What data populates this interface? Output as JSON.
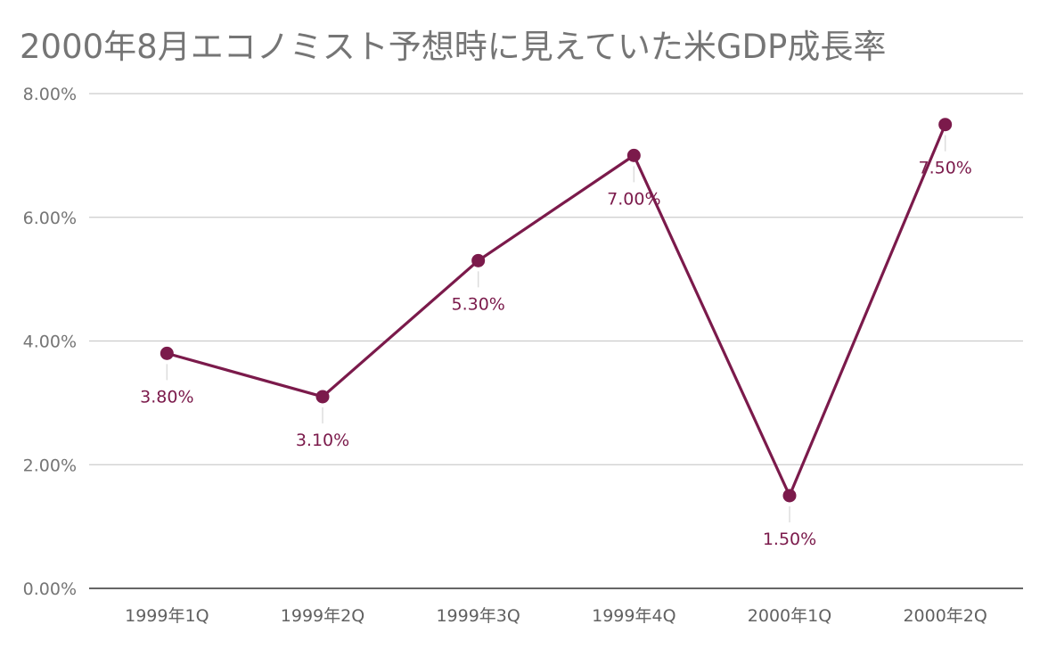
{
  "chart_data": {
    "type": "line",
    "title": "2000年8月エコノミスト予想時に見えていた米GDP成長率",
    "xlabel": "",
    "ylabel": "",
    "categories": [
      "1999年1Q",
      "1999年2Q",
      "1999年3Q",
      "1999年4Q",
      "2000年1Q",
      "2000年2Q"
    ],
    "series": [
      {
        "name": "米GDP成長率",
        "values": [
          3.8,
          3.1,
          5.3,
          7.0,
          1.5,
          7.5
        ],
        "labels": [
          "3.80%",
          "3.10%",
          "5.30%",
          "7.00%",
          "1.50%",
          "7.50%"
        ],
        "color": "#7b1a4b"
      }
    ],
    "ylim": [
      0,
      8
    ],
    "yticks": [
      {
        "value": 0,
        "label": "0.00%"
      },
      {
        "value": 2,
        "label": "2.00%"
      },
      {
        "value": 4,
        "label": "4.00%"
      },
      {
        "value": 6,
        "label": "6.00%"
      },
      {
        "value": 8,
        "label": "8.00%"
      }
    ],
    "grid": true,
    "legend": "none"
  }
}
